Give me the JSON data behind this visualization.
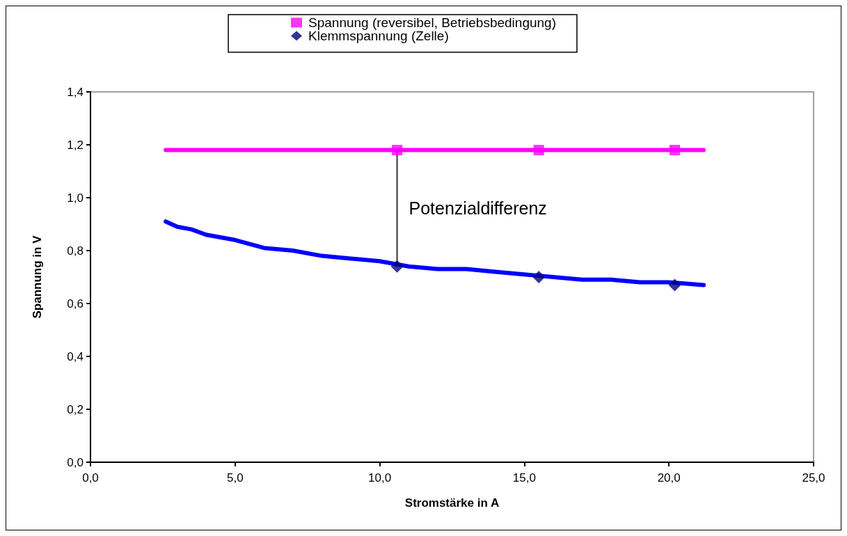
{
  "chart_data": {
    "type": "line",
    "xlabel": "Stromstärke in A",
    "ylabel": "Spannung in V",
    "annotations": [
      {
        "text": "Potenzialdifferenz",
        "x": 10.6,
        "y": 0.96
      }
    ],
    "xlim": [
      0,
      25
    ],
    "xticks": [
      {
        "value": 0,
        "label": "0,0"
      },
      {
        "value": 5,
        "label": "5,0"
      },
      {
        "value": 10,
        "label": "10,0"
      },
      {
        "value": 15,
        "label": "15,0"
      },
      {
        "value": 20,
        "label": "20,0"
      },
      {
        "value": 25,
        "label": "25,0"
      }
    ],
    "ylim": [
      0,
      1.4
    ],
    "yticks": [
      {
        "value": 0,
        "label": "0,0"
      },
      {
        "value": 0.2,
        "label": "0,2"
      },
      {
        "value": 0.4,
        "label": "0,4"
      },
      {
        "value": 0.6,
        "label": "0,6"
      },
      {
        "value": 0.8,
        "label": "0,8"
      },
      {
        "value": 1.0,
        "label": "1,0"
      },
      {
        "value": 1.2,
        "label": "1,2"
      },
      {
        "value": 1.4,
        "label": "1,4"
      }
    ],
    "grid": false,
    "legend": "top",
    "series": [
      {
        "color": "#ff00ff",
        "marker": "none",
        "line_style": "solid",
        "x": [
          2.6,
          21.2
        ],
        "values": [
          1.18,
          1.18
        ]
      },
      {
        "color": "#0000ff",
        "marker": "none",
        "line_style": "solid",
        "x": [
          2.6,
          3,
          3.5,
          4,
          5,
          6,
          7,
          8,
          9,
          10,
          11,
          12,
          13,
          14,
          15,
          16,
          17,
          18,
          19,
          20,
          21.2
        ],
        "values": [
          0.91,
          0.89,
          0.88,
          0.86,
          0.84,
          0.81,
          0.8,
          0.78,
          0.77,
          0.76,
          0.74,
          0.73,
          0.73,
          0.72,
          0.71,
          0.7,
          0.69,
          0.69,
          0.68,
          0.68,
          0.67
        ]
      },
      {
        "color": "#000000",
        "marker": "none",
        "line_style": "solid",
        "x": [
          10.6,
          10.6
        ],
        "values": [
          1.18,
          0.745
        ]
      },
      {
        "type": "scatter",
        "name": "Spannung (reversibel, Betriebsbedingung)",
        "color": "#ff00ff",
        "marker": "square",
        "x": [
          10.6,
          15.5,
          20.2
        ],
        "values": [
          1.18,
          1.18,
          1.18
        ]
      },
      {
        "type": "scatter",
        "name": "Klemmspannung (Zelle)",
        "color": "#000080",
        "marker": "diamond",
        "x": [
          10.6,
          15.5,
          20.2
        ],
        "values": [
          0.74,
          0.7,
          0.67
        ]
      }
    ]
  }
}
